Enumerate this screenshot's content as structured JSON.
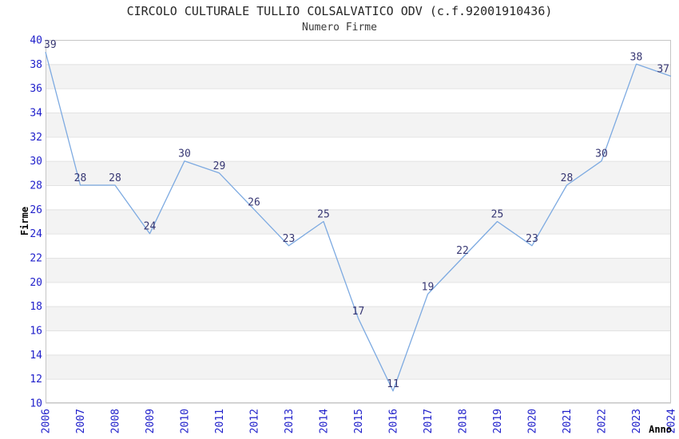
{
  "title": "CIRCOLO CULTURALE TULLIO COLSALVATICO ODV (c.f.92001910436)",
  "subtitle": "Numero Firme",
  "chart_data": {
    "type": "line",
    "title": "CIRCOLO CULTURALE TULLIO COLSALVATICO ODV (c.f.92001910436)",
    "subtitle": "Numero Firme",
    "xlabel": "Anno",
    "ylabel": "Firme",
    "categories": [
      "2006",
      "2007",
      "2008",
      "2009",
      "2010",
      "2011",
      "2012",
      "2013",
      "2014",
      "2015",
      "2016",
      "2017",
      "2018",
      "2019",
      "2020",
      "2021",
      "2022",
      "2023",
      "2024"
    ],
    "series": [
      {
        "name": "Numero Firme",
        "values": [
          39,
          28,
          28,
          24,
          30,
          29,
          26,
          23,
          25,
          17,
          11,
          19,
          22,
          25,
          23,
          28,
          30,
          38,
          37
        ]
      }
    ],
    "ylim": [
      10,
      40
    ],
    "ytick_step": 2,
    "grid": true,
    "alternating_bands": true,
    "legend": "none",
    "point_labels": true,
    "colors": {
      "line": "#7daae1",
      "tick_label": "#2121cb",
      "point_label": "#373773",
      "band": "#f3f3f3",
      "gridline": "#e2e2e2",
      "frame": "#c6c6c6",
      "background": "#ffffff"
    }
  }
}
